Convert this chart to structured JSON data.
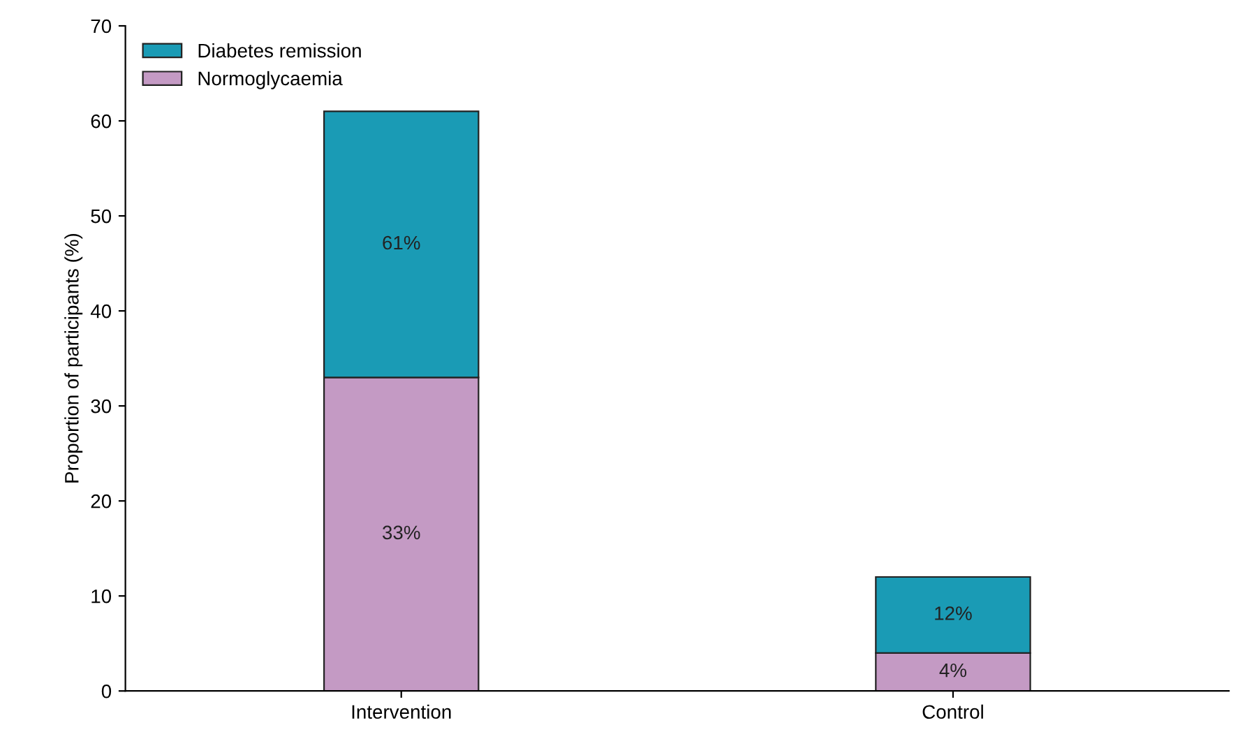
{
  "chart_data": {
    "type": "bar",
    "stacked": true,
    "ylabel": "Proportion of participants (%)",
    "categories": [
      "Intervention",
      "Control"
    ],
    "series": [
      {
        "name": "Normoglycaemia",
        "color": "#c49ac4",
        "values": [
          33,
          4
        ],
        "value_labels": [
          "33%",
          "4%"
        ]
      },
      {
        "name": "Diabetes remission",
        "color": "#1a9bb5",
        "values": [
          28,
          8
        ]
      }
    ],
    "annotations": [
      "61%",
      "12%"
    ],
    "ylim": [
      0,
      70
    ],
    "yticks": [
      0,
      10,
      20,
      30,
      40,
      50,
      60,
      70
    ],
    "grid": false,
    "legend": "top left"
  }
}
